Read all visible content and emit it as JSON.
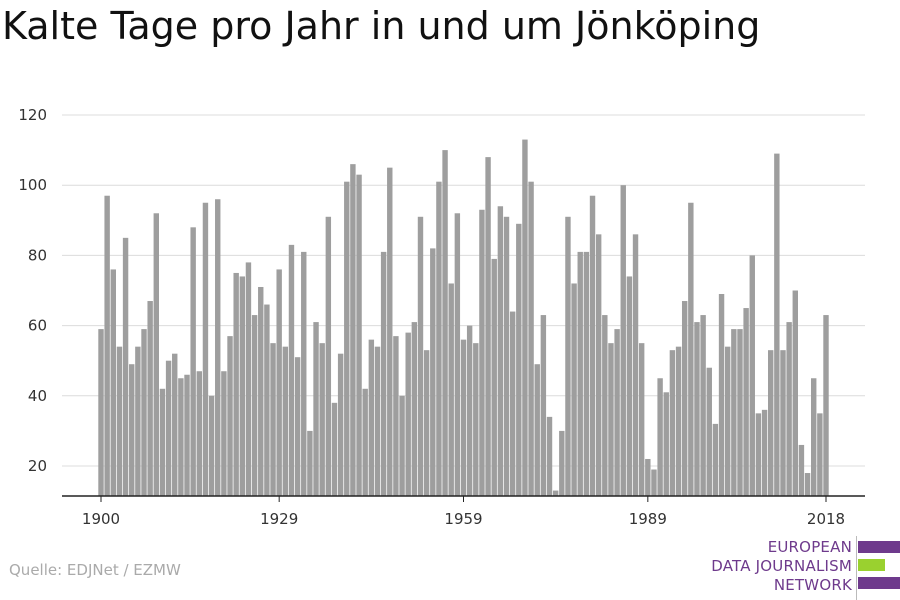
{
  "title": "Kalte Tage pro Jahr in und um Jönköping",
  "source": "Quelle: EDJNet / EZMW",
  "logo": {
    "lines": [
      "EUROPEAN",
      "DATA JOURNALISM",
      "NETWORK"
    ],
    "colors": [
      "#6e3a8c",
      "#9ad12f",
      "#6e3a8c"
    ]
  },
  "chart_data": {
    "type": "bar",
    "title": "Kalte Tage pro Jahr in und um Jönköping",
    "xlabel": "",
    "ylabel": "",
    "x_start": 1900,
    "x_end": 2018,
    "x_tick_labels": [
      "1900",
      "1929",
      "1959",
      "1989",
      "2018"
    ],
    "y_tick_labels": [
      "20",
      "40",
      "60",
      "80",
      "100",
      "120"
    ],
    "ylim": [
      11,
      120
    ],
    "bar_color": "#9e9e9e",
    "grid": true,
    "values": [
      59,
      97,
      76,
      54,
      85,
      49,
      54,
      59,
      67,
      92,
      42,
      50,
      52,
      45,
      46,
      88,
      47,
      95,
      40,
      96,
      47,
      57,
      75,
      74,
      78,
      63,
      71,
      66,
      55,
      76,
      54,
      83,
      51,
      81,
      30,
      61,
      55,
      91,
      38,
      52,
      101,
      106,
      103,
      42,
      56,
      54,
      81,
      105,
      57,
      40,
      58,
      61,
      91,
      53,
      82,
      101,
      110,
      72,
      92,
      56,
      60,
      55,
      93,
      108,
      79,
      94,
      91,
      64,
      89,
      113,
      101,
      49,
      63,
      34,
      13,
      30,
      91,
      72,
      81,
      81,
      97,
      86,
      63,
      55,
      59,
      100,
      74,
      86,
      55,
      22,
      19,
      45,
      41,
      53,
      54,
      67,
      95,
      61,
      63,
      48,
      32,
      69,
      54,
      59,
      59,
      65,
      80,
      35,
      36,
      53,
      109,
      53,
      61,
      70,
      26,
      18,
      45,
      35,
      63
    ]
  }
}
